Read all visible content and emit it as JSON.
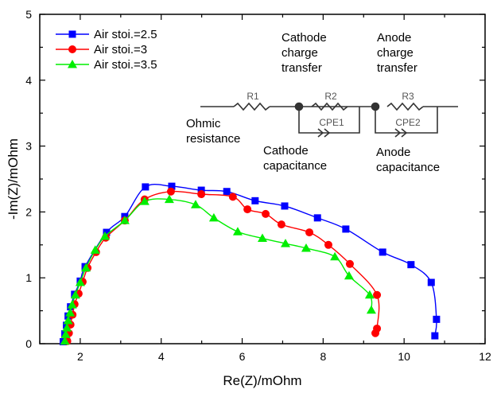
{
  "chart_data": {
    "type": "line",
    "title": "",
    "xlabel": "Re(Z)/mOhm",
    "ylabel": "-Im(Z)/mOhm",
    "xlim": [
      1,
      12
    ],
    "ylim": [
      0,
      5
    ],
    "xticks": [
      2,
      4,
      6,
      8,
      10,
      12
    ],
    "yticks": [
      0,
      1,
      2,
      3,
      4,
      5
    ],
    "grid": false,
    "legend_position": "top-left",
    "series": [
      {
        "name": "Air stoi.=2.5",
        "color": "#0000ff",
        "marker": "square",
        "x": [
          1.58,
          1.62,
          1.66,
          1.7,
          1.76,
          1.86,
          2.0,
          2.12,
          2.65,
          3.1,
          3.61,
          4.26,
          4.99,
          5.62,
          6.32,
          7.05,
          7.86,
          8.56,
          9.47,
          10.17,
          10.67,
          10.8,
          10.76
        ],
        "y": [
          0.03,
          0.15,
          0.28,
          0.42,
          0.56,
          0.75,
          0.95,
          1.17,
          1.69,
          1.93,
          2.38,
          2.39,
          2.33,
          2.31,
          2.17,
          2.09,
          1.91,
          1.74,
          1.39,
          1.2,
          0.93,
          0.37,
          0.12
        ]
      },
      {
        "name": "Air stoi.=3",
        "color": "#ff0000",
        "marker": "circle",
        "x": [
          1.68,
          1.72,
          1.76,
          1.81,
          1.86,
          1.96,
          2.06,
          2.18,
          2.39,
          2.63,
          3.1,
          3.59,
          4.24,
          4.99,
          5.77,
          6.13,
          6.58,
          6.97,
          7.66,
          8.13,
          8.66,
          9.33,
          9.33,
          9.29
        ],
        "y": [
          0.04,
          0.16,
          0.29,
          0.44,
          0.6,
          0.76,
          0.94,
          1.15,
          1.39,
          1.61,
          1.87,
          2.19,
          2.31,
          2.27,
          2.23,
          2.04,
          1.97,
          1.81,
          1.69,
          1.5,
          1.21,
          0.74,
          0.23,
          0.16
        ]
      },
      {
        "name": "Air stoi.=3.5",
        "color": "#00ee00",
        "marker": "triangle",
        "x": [
          1.62,
          1.64,
          1.67,
          1.7,
          1.75,
          1.8,
          1.88,
          2.0,
          2.14,
          2.37,
          2.61,
          3.1,
          3.59,
          4.2,
          4.85,
          5.3,
          5.89,
          6.5,
          7.07,
          7.58,
          8.29,
          8.64,
          9.15,
          9.19
        ],
        "y": [
          0.04,
          0.14,
          0.24,
          0.35,
          0.47,
          0.59,
          0.74,
          0.93,
          1.15,
          1.42,
          1.63,
          1.87,
          2.16,
          2.19,
          2.11,
          1.91,
          1.7,
          1.6,
          1.52,
          1.45,
          1.32,
          1.03,
          0.74,
          0.51
        ]
      }
    ]
  },
  "circuit": {
    "elements": [
      "R1",
      "R2",
      "CPE1",
      "R3",
      "CPE2"
    ],
    "labels": {
      "ohmic": "Ohmic\nresistance",
      "cathode_ct": "Cathode\ncharge\ntransfer",
      "anode_ct": "Anode\ncharge\ntransfer",
      "cathode_cap": "Cathode\ncapacitance",
      "anode_cap": "Anode\ncapacitance"
    }
  }
}
